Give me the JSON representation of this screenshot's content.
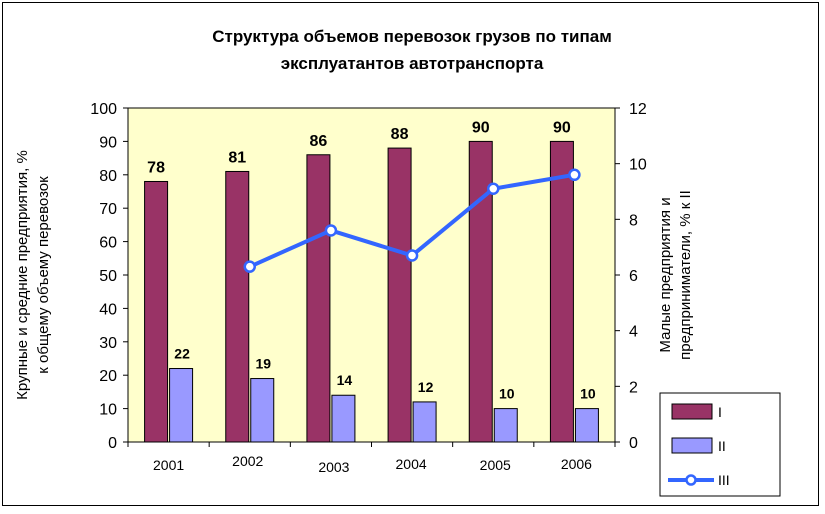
{
  "chart_data": {
    "type": "bar",
    "title_lines": [
      "Структура объемов перевозок грузов  по типам",
      "эксплуатантов автотранспорта"
    ],
    "categories": [
      "2001",
      "2002",
      "2003",
      "2004",
      "2005",
      "2006"
    ],
    "series": [
      {
        "name": "I",
        "type": "bar",
        "axis": "left",
        "color": "#993366",
        "values": [
          78,
          81,
          86,
          88,
          90,
          90
        ]
      },
      {
        "name": "II",
        "type": "bar",
        "axis": "left",
        "color": "#9999FF",
        "values": [
          22,
          19,
          14,
          12,
          10,
          10
        ]
      },
      {
        "name": "III",
        "type": "line",
        "axis": "right",
        "color": "#3366FF",
        "values": [
          null,
          6.3,
          7.6,
          6.7,
          9.1,
          9.6
        ]
      }
    ],
    "ylabel_left": [
      "Крупные и средние предприятия, %",
      "к общему объему перевозок"
    ],
    "ylabel_right": [
      "Малые предприятия и",
      "предприниматели, % к II"
    ],
    "ylim_left": [
      0,
      100
    ],
    "yticks_left": [
      "0",
      "10",
      "20",
      "30",
      "40",
      "50",
      "60",
      "70",
      "80",
      "90",
      "100"
    ],
    "ylim_right": [
      0,
      12
    ],
    "yticks_right": [
      "0",
      "2",
      "4",
      "6",
      "8",
      "10",
      "12"
    ],
    "plot_background": "#FFFFCC",
    "legend_position": "bottom-right",
    "grid": false
  }
}
